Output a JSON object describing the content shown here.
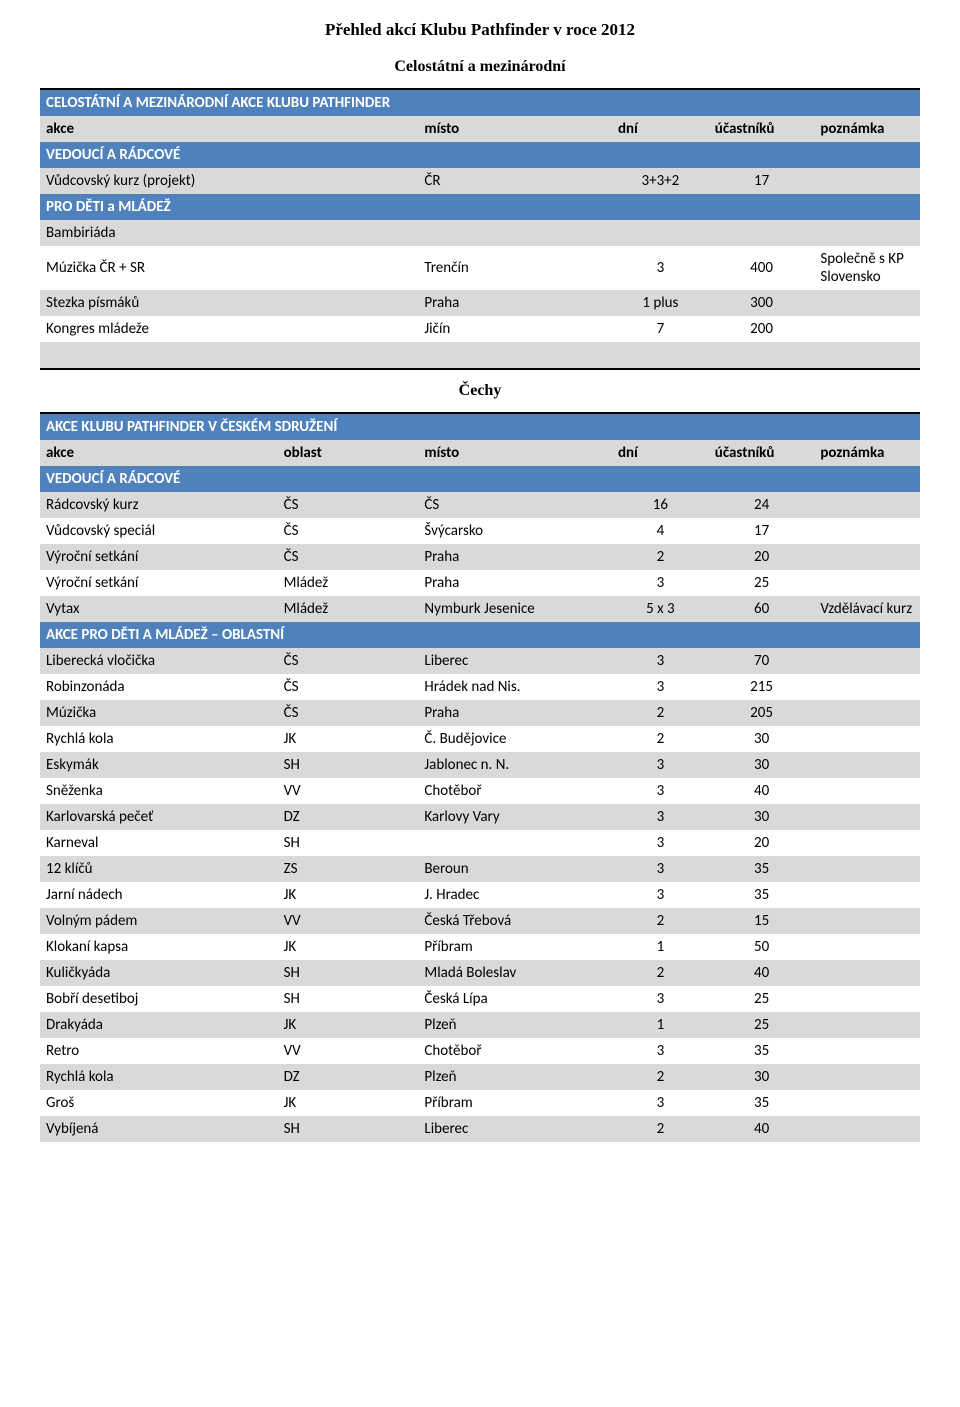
{
  "page_title": "Přehled akcí Klubu Pathfinder v roce 2012",
  "section1_title": "Celostátní a mezinárodní",
  "section2_title": "Čechy",
  "colors": {
    "band_bg": "#4f81bd",
    "grey_bg": "#d9d9d9",
    "white_bg": "#ffffff"
  },
  "table1": {
    "band1": "CELOSTÁTNÍ A MEZINÁRODNÍ AKCE KLUBU PATHFINDER",
    "hdr": {
      "c1": "akce",
      "c2": "",
      "c3": "místo",
      "c4": "dní",
      "c5": "účastníků",
      "c6": "poznámka"
    },
    "band2": "VEDOUCÍ A RÁDCOVÉ",
    "r1": {
      "c1": "Vůdcovský kurz (projekt)",
      "c2": "",
      "c3": "ČR",
      "c4": "3+3+2",
      "c5": "17",
      "c6": ""
    },
    "band3": "PRO DĚTI a MLÁDEŽ",
    "r2": {
      "c1": "Bambiriáda",
      "c2": "",
      "c3": "",
      "c4": "",
      "c5": "",
      "c6": ""
    },
    "r3": {
      "c1": "Múzička ČR + SR",
      "c2": "",
      "c3": "Trenčín",
      "c4": "3",
      "c5": "400",
      "c6": "Společně s KP Slovensko"
    },
    "r4": {
      "c1": "Stezka písmáků",
      "c2": "",
      "c3": "Praha",
      "c4": "1 plus",
      "c5": "300",
      "c6": ""
    },
    "r5": {
      "c1": "Kongres mládeže",
      "c2": "",
      "c3": "Jičín",
      "c4": "7",
      "c5": "200",
      "c6": ""
    }
  },
  "table2": {
    "band1": "AKCE KLUBU PATHFINDER V ČESKÉM SDRUŽENÍ",
    "hdr": {
      "c1": "akce",
      "c2": "oblast",
      "c3": "místo",
      "c4": "dní",
      "c5": "účastníků",
      "c6": "poznámka"
    },
    "band2": "VEDOUCÍ A RÁDCOVÉ",
    "rows_a": [
      {
        "c1": "Rádcovský kurz",
        "c2": "ČS",
        "c3": "ČS",
        "c4": "16",
        "c5": "24",
        "c6": ""
      },
      {
        "c1": "Vůdcovský speciál",
        "c2": "ČS",
        "c3": "Švýcarsko",
        "c4": "4",
        "c5": "17",
        "c6": ""
      },
      {
        "c1": "Výroční setkání",
        "c2": "ČS",
        "c3": "Praha",
        "c4": "2",
        "c5": "20",
        "c6": ""
      },
      {
        "c1": "Výroční setkání",
        "c2": "Mládež",
        "c3": "Praha",
        "c4": "3",
        "c5": "25",
        "c6": ""
      },
      {
        "c1": "Vytax",
        "c2": "Mládež",
        "c3": "Nymburk Jesenice",
        "c4": "5 x 3",
        "c5": "60",
        "c6": "Vzdělávací kurz"
      }
    ],
    "band3": "AKCE PRO DĚTI A MLÁDEŽ – OBLASTNÍ",
    "rows_b": [
      {
        "c1": "Liberecká vločička",
        "c2": "ČS",
        "c3": "Liberec",
        "c4": "3",
        "c5": "70",
        "c6": ""
      },
      {
        "c1": "Robinzonáda",
        "c2": "ČS",
        "c3": "Hrádek nad Nis.",
        "c4": "3",
        "c5": "215",
        "c6": ""
      },
      {
        "c1": "Múzička",
        "c2": "ČS",
        "c3": "Praha",
        "c4": "2",
        "c5": "205",
        "c6": ""
      },
      {
        "c1": "Rychlá kola",
        "c2": "JK",
        "c3": "Č. Budějovice",
        "c4": "2",
        "c5": "30",
        "c6": ""
      },
      {
        "c1": "Eskymák",
        "c2": "SH",
        "c3": "Jablonec n. N.",
        "c4": "3",
        "c5": "30",
        "c6": ""
      },
      {
        "c1": "Sněženka",
        "c2": "VV",
        "c3": "Chotěboř",
        "c4": "3",
        "c5": "40",
        "c6": ""
      },
      {
        "c1": "Karlovarská pečeť",
        "c2": "DZ",
        "c3": "Karlovy Vary",
        "c4": "3",
        "c5": "30",
        "c6": ""
      },
      {
        "c1": "Karneval",
        "c2": "SH",
        "c3": "",
        "c4": "3",
        "c5": "20",
        "c6": ""
      },
      {
        "c1": "12 klíčů",
        "c2": "ZS",
        "c3": "Beroun",
        "c4": "3",
        "c5": "35",
        "c6": ""
      },
      {
        "c1": "Jarní nádech",
        "c2": "JK",
        "c3": "J. Hradec",
        "c4": "3",
        "c5": "35",
        "c6": ""
      },
      {
        "c1": "Volným pádem",
        "c2": "VV",
        "c3": "Česká Třebová",
        "c4": "2",
        "c5": "15",
        "c6": ""
      },
      {
        "c1": "Klokaní kapsa",
        "c2": "JK",
        "c3": "Příbram",
        "c4": "1",
        "c5": "50",
        "c6": ""
      },
      {
        "c1": "Kuličkyáda",
        "c2": "SH",
        "c3": "Mladá Boleslav",
        "c4": "2",
        "c5": "40",
        "c6": ""
      },
      {
        "c1": "Bobří desetiboj",
        "c2": "SH",
        "c3": "Česká Lípa",
        "c4": "3",
        "c5": "25",
        "c6": ""
      },
      {
        "c1": "Drakyáda",
        "c2": "JK",
        "c3": "Plzeň",
        "c4": "1",
        "c5": "25",
        "c6": ""
      },
      {
        "c1": "Retro",
        "c2": "VV",
        "c3": "Chotěboř",
        "c4": "3",
        "c5": "35",
        "c6": ""
      },
      {
        "c1": "Rychlá kola",
        "c2": "DZ",
        "c3": "Plzeň",
        "c4": "2",
        "c5": "30",
        "c6": ""
      },
      {
        "c1": "Groš",
        "c2": "JK",
        "c3": "Příbram",
        "c4": "3",
        "c5": "35",
        "c6": ""
      },
      {
        "c1": "Vybíjená",
        "c2": "SH",
        "c3": "Liberec",
        "c4": "2",
        "c5": "40",
        "c6": ""
      }
    ]
  }
}
